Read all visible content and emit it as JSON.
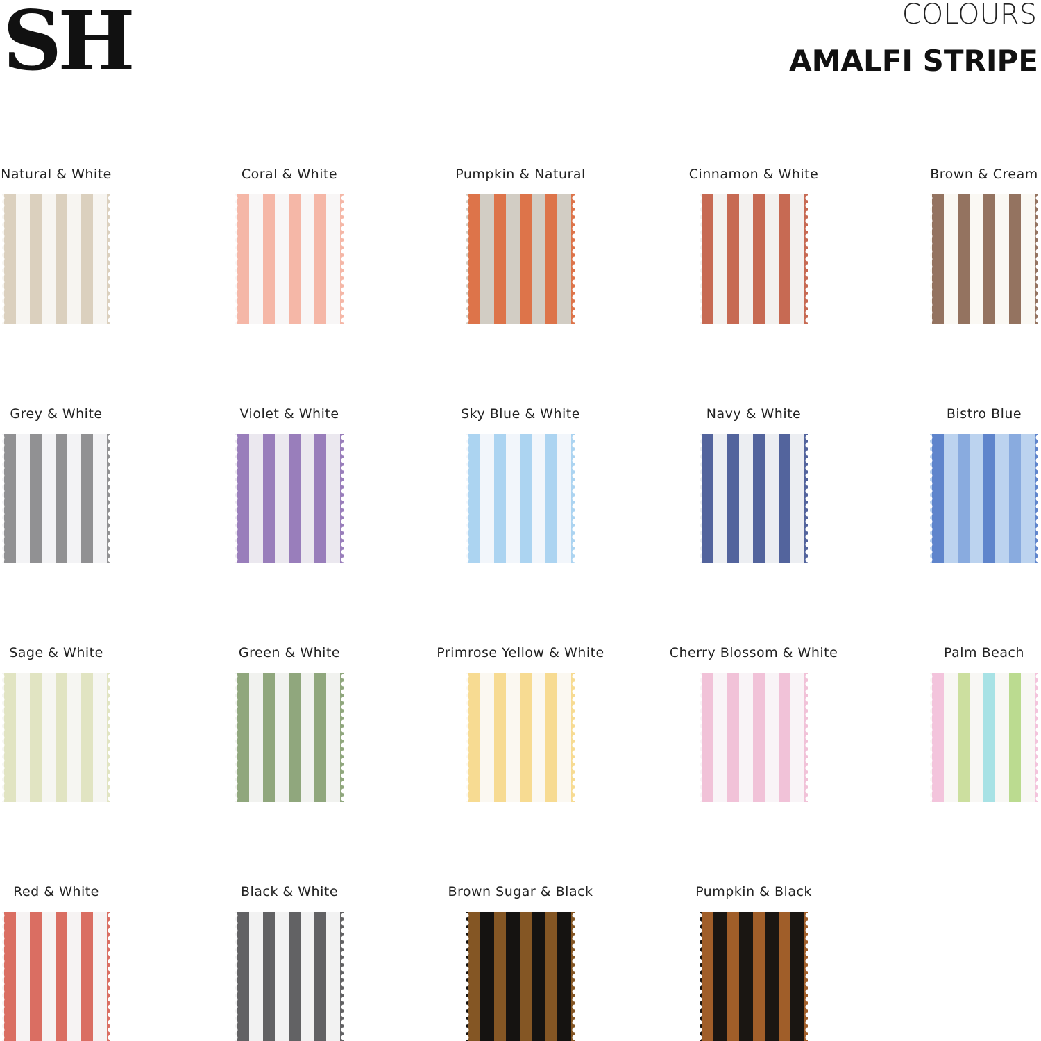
{
  "header": {
    "logo": "SH",
    "subtitle": "COLOURS",
    "title": "AMALFI STRIPE"
  },
  "swatches": [
    {
      "name": "Natural & White",
      "stripes": [
        "#d9cdbb"
      ],
      "ground": "#f7f5f1"
    },
    {
      "name": "Coral & White",
      "stripes": [
        "#f4b3a2"
      ],
      "ground": "#f8f6f6"
    },
    {
      "name": "Pumpkin & Natural",
      "stripes": [
        "#dd6f43"
      ],
      "ground": "#d2cdc4"
    },
    {
      "name": "Cinnamon & White",
      "stripes": [
        "#c4624a"
      ],
      "ground": "#f3f1ef"
    },
    {
      "name": "Brown & Cream",
      "stripes": [
        "#8e6b57"
      ],
      "ground": "#faf8f3"
    },
    {
      "name": "Grey & White",
      "stripes": [
        "#8b8b8d"
      ],
      "ground": "#f3f3f5"
    },
    {
      "name": "Violet & White",
      "stripes": [
        "#9578b7"
      ],
      "ground": "#ebe8ef"
    },
    {
      "name": "Sky Blue & White",
      "stripes": [
        "#a8d2f0"
      ],
      "ground": "#f2f6fb"
    },
    {
      "name": "Navy & White",
      "stripes": [
        "#4b5c98"
      ],
      "ground": "#eceef2"
    },
    {
      "name": "Bistro Blue",
      "stripes": [
        "#5a81c9",
        "#86a9dd"
      ],
      "ground": "#bcd3ef"
    },
    {
      "name": "Sage & White",
      "stripes": [
        "#dfe3bf"
      ],
      "ground": "#f6f6f2"
    },
    {
      "name": "Green & White",
      "stripes": [
        "#8aa276"
      ],
      "ground": "#f1f2ef"
    },
    {
      "name": "Primrose Yellow & White",
      "stripes": [
        "#f7d98c"
      ],
      "ground": "#fbf8f1"
    },
    {
      "name": "Cherry Blossom & White",
      "stripes": [
        "#f0bfd6"
      ],
      "ground": "#f9f4f7"
    },
    {
      "name": "Palm Beach",
      "stripes": [
        "#f2c1da",
        "#c9dd9a",
        "#a3e0e4",
        "#b7d98a"
      ],
      "ground": "#f8f7f4"
    },
    {
      "name": "Red & White",
      "stripes": [
        "#d8665a"
      ],
      "ground": "#f6f3f3"
    },
    {
      "name": "Black & White",
      "stripes": [
        "#5a5a5c"
      ],
      "ground": "#f2f2f2"
    },
    {
      "name": "Brown Sugar & Black",
      "stripes": [
        "#8a5a26"
      ],
      "ground": "#151311"
    },
    {
      "name": "Pumpkin & Black",
      "stripes": [
        "#a8622b"
      ],
      "ground": "#1a1612"
    }
  ]
}
